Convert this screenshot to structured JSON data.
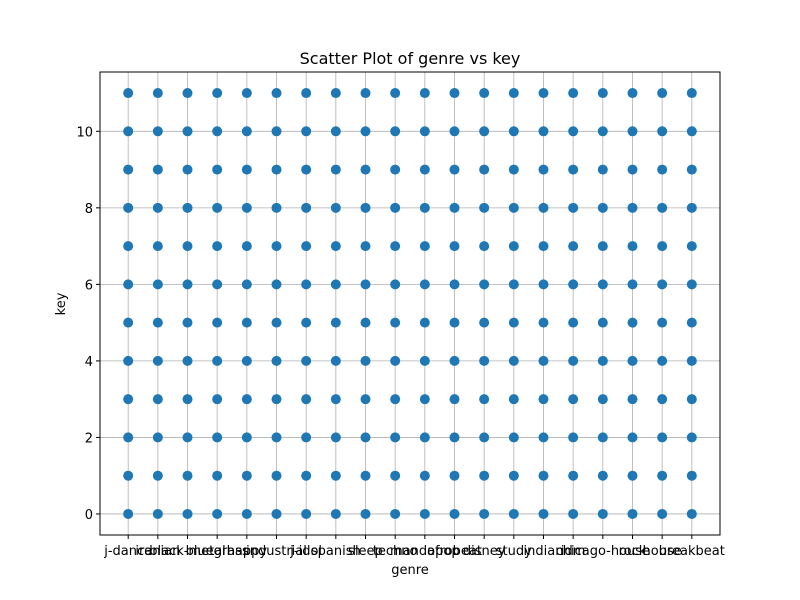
{
  "chart_data": {
    "type": "scatter",
    "title": "Scatter Plot of genre vs key",
    "x_label": "genre",
    "y_label": "key",
    "categories": [
      "j-dance",
      "iranian",
      "black-metal",
      "bluegrass",
      "happy",
      "industrial",
      "j-idol",
      "spanish",
      "sleep",
      "techno",
      "mandopop",
      "afrobeat",
      "disney",
      "study",
      "indian",
      "idm",
      "chicago-house",
      "rock",
      "house",
      "breakbeat"
    ],
    "values": [
      [
        0,
        1,
        2,
        3,
        4,
        5,
        6,
        7,
        8,
        9,
        10,
        11
      ],
      [
        0,
        1,
        2,
        3,
        4,
        5,
        6,
        7,
        8,
        9,
        10,
        11
      ],
      [
        0,
        1,
        2,
        3,
        4,
        5,
        6,
        7,
        8,
        9,
        10,
        11
      ],
      [
        0,
        1,
        2,
        3,
        4,
        5,
        6,
        7,
        8,
        9,
        10,
        11
      ],
      [
        0,
        1,
        2,
        3,
        4,
        5,
        6,
        7,
        8,
        9,
        10,
        11
      ],
      [
        0,
        1,
        2,
        3,
        4,
        5,
        6,
        7,
        8,
        9,
        10,
        11
      ],
      [
        0,
        1,
        2,
        3,
        4,
        5,
        6,
        7,
        8,
        9,
        10,
        11
      ],
      [
        0,
        1,
        2,
        3,
        4,
        5,
        6,
        7,
        8,
        9,
        10,
        11
      ],
      [
        0,
        1,
        2,
        3,
        4,
        5,
        6,
        7,
        8,
        9,
        10,
        11
      ],
      [
        0,
        1,
        2,
        3,
        4,
        5,
        6,
        7,
        8,
        9,
        10,
        11
      ],
      [
        0,
        1,
        2,
        3,
        4,
        5,
        6,
        7,
        8,
        9,
        10,
        11
      ],
      [
        0,
        1,
        2,
        3,
        4,
        5,
        6,
        7,
        8,
        9,
        10,
        11
      ],
      [
        0,
        1,
        2,
        3,
        4,
        5,
        6,
        7,
        8,
        9,
        10,
        11
      ],
      [
        0,
        1,
        2,
        3,
        4,
        5,
        6,
        7,
        8,
        9,
        10,
        11
      ],
      [
        0,
        1,
        2,
        3,
        4,
        5,
        6,
        7,
        8,
        9,
        10,
        11
      ],
      [
        0,
        1,
        2,
        3,
        4,
        5,
        6,
        7,
        8,
        9,
        10,
        11
      ],
      [
        0,
        1,
        2,
        3,
        4,
        5,
        6,
        7,
        8,
        9,
        10,
        11
      ],
      [
        0,
        1,
        2,
        3,
        4,
        5,
        6,
        7,
        8,
        9,
        10,
        11
      ],
      [
        0,
        1,
        2,
        3,
        4,
        5,
        6,
        7,
        8,
        9,
        10,
        11
      ],
      [
        0,
        1,
        2,
        3,
        4,
        5,
        6,
        7,
        8,
        9,
        10,
        11
      ]
    ],
    "color": "#1f77b4",
    "ylim": [
      -0.55,
      11.55
    ],
    "yticks": [
      0,
      2,
      4,
      6,
      8,
      10
    ],
    "grid": true
  }
}
